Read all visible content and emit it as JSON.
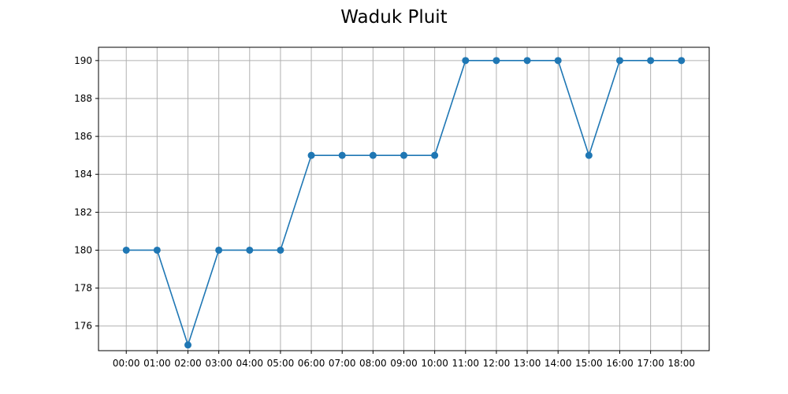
{
  "chart_data": {
    "type": "line",
    "title": "Waduk Pluit",
    "xlabel": "",
    "ylabel": "",
    "categories": [
      "00:00",
      "01:00",
      "02:00",
      "03:00",
      "04:00",
      "05:00",
      "06:00",
      "07:00",
      "08:00",
      "09:00",
      "10:00",
      "11:00",
      "12:00",
      "13:00",
      "14:00",
      "15:00",
      "16:00",
      "17:00",
      "18:00"
    ],
    "series": [
      {
        "values": [
          180,
          180,
          175,
          180,
          180,
          180,
          185,
          185,
          185,
          185,
          185,
          190,
          190,
          190,
          190,
          185,
          190,
          190,
          190
        ],
        "color": "#1f77b4",
        "marker": "circle"
      }
    ],
    "ylim": [
      174.7,
      190.7
    ],
    "yticks": [
      176,
      178,
      180,
      182,
      184,
      186,
      188,
      190
    ],
    "grid": true,
    "legend": "none"
  }
}
